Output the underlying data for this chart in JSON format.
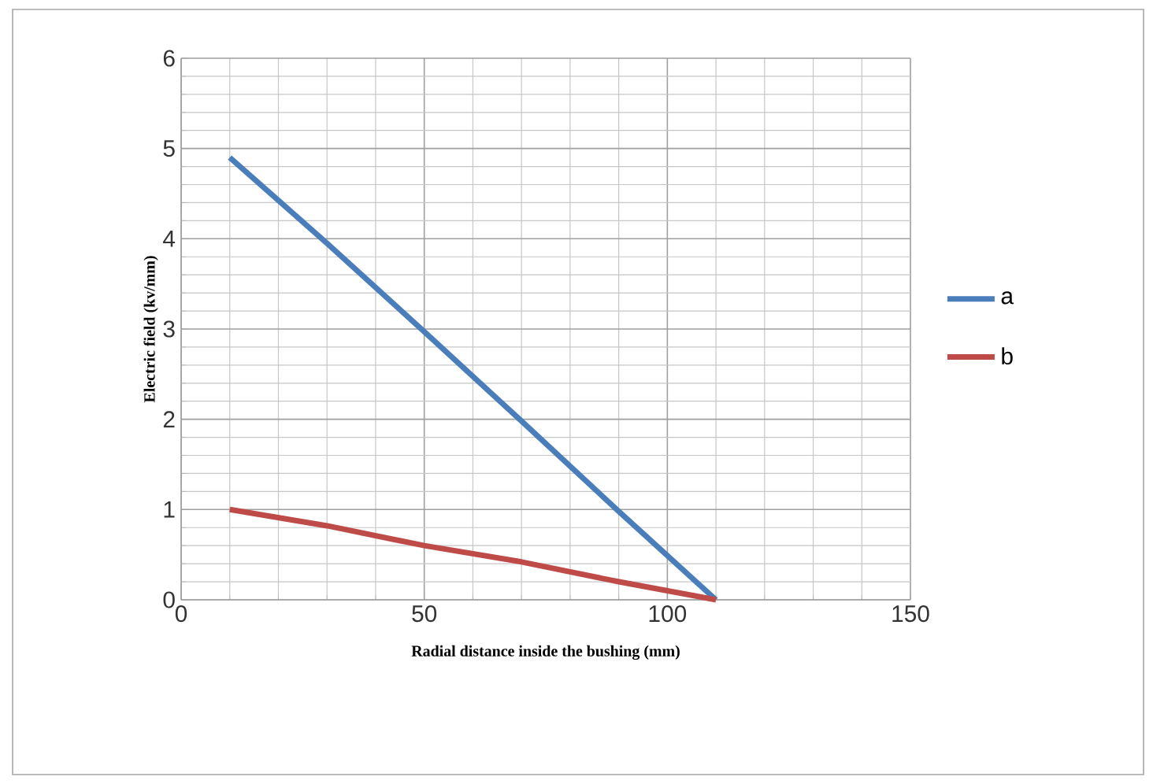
{
  "chart_data": {
    "type": "line",
    "xlabel": "Radial distance inside the bushing (mm)",
    "ylabel": "Electric field (kv/mm)",
    "x": [
      10,
      30,
      50,
      70,
      90,
      110
    ],
    "series": [
      {
        "name": "a",
        "color": "#4a7ebb",
        "values": [
          4.9,
          3.95,
          2.97,
          1.98,
          0.98,
          0
        ]
      },
      {
        "name": "b",
        "color": "#be4b48",
        "values": [
          1.0,
          0.82,
          0.6,
          0.42,
          0.2,
          0
        ]
      }
    ],
    "xlim": [
      0,
      150
    ],
    "xticks": [
      0,
      50,
      100,
      150
    ],
    "ylim": [
      0,
      6
    ],
    "yticks": [
      0,
      1,
      2,
      3,
      4,
      5,
      6
    ],
    "grid": true,
    "legend": "right",
    "marker": "none",
    "line_style": "solid"
  }
}
